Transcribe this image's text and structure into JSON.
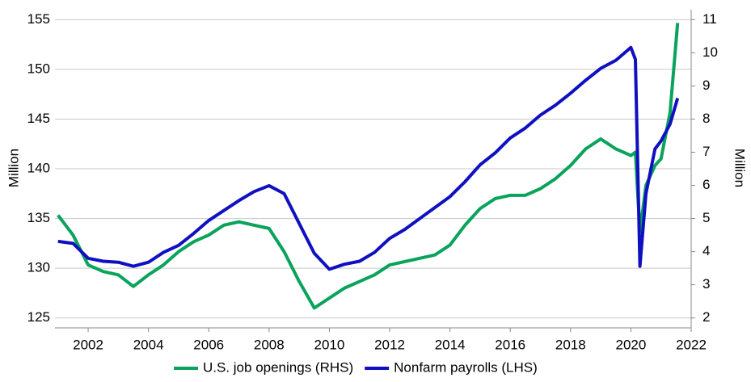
{
  "chart_data": {
    "type": "line",
    "x": [
      2001,
      2001.5,
      2002,
      2002.5,
      2003,
      2003.5,
      2004,
      2004.5,
      2005,
      2005.5,
      2006,
      2006.5,
      2007,
      2007.5,
      2008,
      2008.5,
      2009,
      2009.5,
      2010,
      2010.5,
      2011,
      2011.5,
      2012,
      2012.5,
      2013,
      2013.5,
      2014,
      2014.5,
      2015,
      2015.5,
      2016,
      2016.5,
      2017,
      2017.5,
      2018,
      2018.5,
      2019,
      2019.5,
      2020,
      2020.15,
      2020.3,
      2020.5,
      2020.8,
      2021,
      2021.3,
      2021.55
    ],
    "series": [
      {
        "name": "U.S. job openings (RHS)",
        "color": "#0aa35b",
        "axis": "y2",
        "values": [
          5.1,
          4.5,
          3.6,
          3.4,
          3.3,
          2.95,
          3.3,
          3.6,
          4.0,
          4.3,
          4.5,
          4.8,
          4.9,
          4.8,
          4.7,
          4.0,
          3.1,
          2.3,
          2.6,
          2.9,
          3.1,
          3.3,
          3.6,
          3.7,
          3.8,
          3.9,
          4.2,
          4.8,
          5.3,
          5.6,
          5.7,
          5.7,
          5.9,
          6.2,
          6.6,
          7.1,
          7.4,
          7.1,
          6.9,
          7.0,
          4.6,
          6.0,
          6.6,
          6.8,
          8.2,
          10.9
        ]
      },
      {
        "name": "Nonfarm payrolls (LHS)",
        "color": "#1010c0",
        "values": [
          132.7,
          132.5,
          131.0,
          130.7,
          130.6,
          130.2,
          130.6,
          131.6,
          132.3,
          133.5,
          134.8,
          135.8,
          136.8,
          137.7,
          138.3,
          137.5,
          134.5,
          131.5,
          129.9,
          130.4,
          130.7,
          131.6,
          133.0,
          133.9,
          135.0,
          136.1,
          137.2,
          138.7,
          140.4,
          141.6,
          143.1,
          144.1,
          145.4,
          146.4,
          147.6,
          148.9,
          150.1,
          150.9,
          152.2,
          151.0,
          130.2,
          137.5,
          142.0,
          142.8,
          144.5,
          147.1
        ]
      }
    ],
    "xlim": [
      2000.9,
      2022
    ],
    "xticks": [
      2002,
      2004,
      2006,
      2008,
      2010,
      2012,
      2014,
      2016,
      2018,
      2020,
      2022
    ],
    "ylim": [
      124,
      156
    ],
    "yticks": [
      125,
      130,
      135,
      140,
      145,
      150,
      155
    ],
    "y2lim": [
      1.7,
      11.3
    ],
    "y2ticks": [
      2,
      3,
      4,
      5,
      6,
      7,
      8,
      9,
      10,
      11
    ],
    "ylabel": "Million",
    "y2label": "Million",
    "grid": true,
    "legend": "bottom"
  }
}
